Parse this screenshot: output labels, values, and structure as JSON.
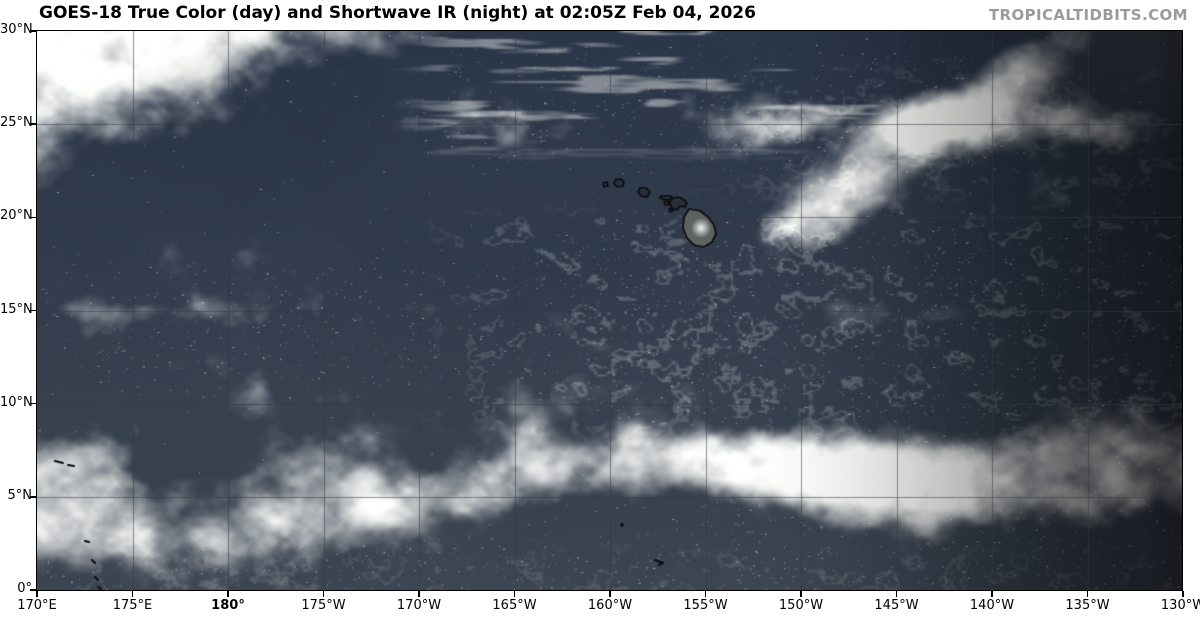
{
  "header": {
    "title": "GOES-18 True Color (day) and Shortwave IR (night) at 02:05Z Feb 04, 2026",
    "brand": "TROPICALTIDBITS.COM"
  },
  "map": {
    "x_ticks": [
      "170°E",
      "175°E",
      "180°",
      "175°W",
      "170°W",
      "165°W",
      "160°W",
      "155°W",
      "150°W",
      "145°W",
      "140°W",
      "135°W",
      "130°W"
    ],
    "x_bold_tick": "180°",
    "y_ticks": [
      "30°N",
      "25°N",
      "20°N",
      "15°N",
      "10°N",
      "5°N",
      "0°"
    ],
    "colors": {
      "background": "#ffffff",
      "title_text": "#000000",
      "brand_text": "#9b9b9b",
      "border": "#000000",
      "grid": "rgba(52,57,66,0.55)",
      "coastline": "#0b0b0b",
      "land_fill": "#5d6360",
      "small_island_fill": "#28303d",
      "ocean_day": "#2a3548",
      "ocean_night": "#1c2330",
      "cloud": "#eef0ee"
    }
  }
}
